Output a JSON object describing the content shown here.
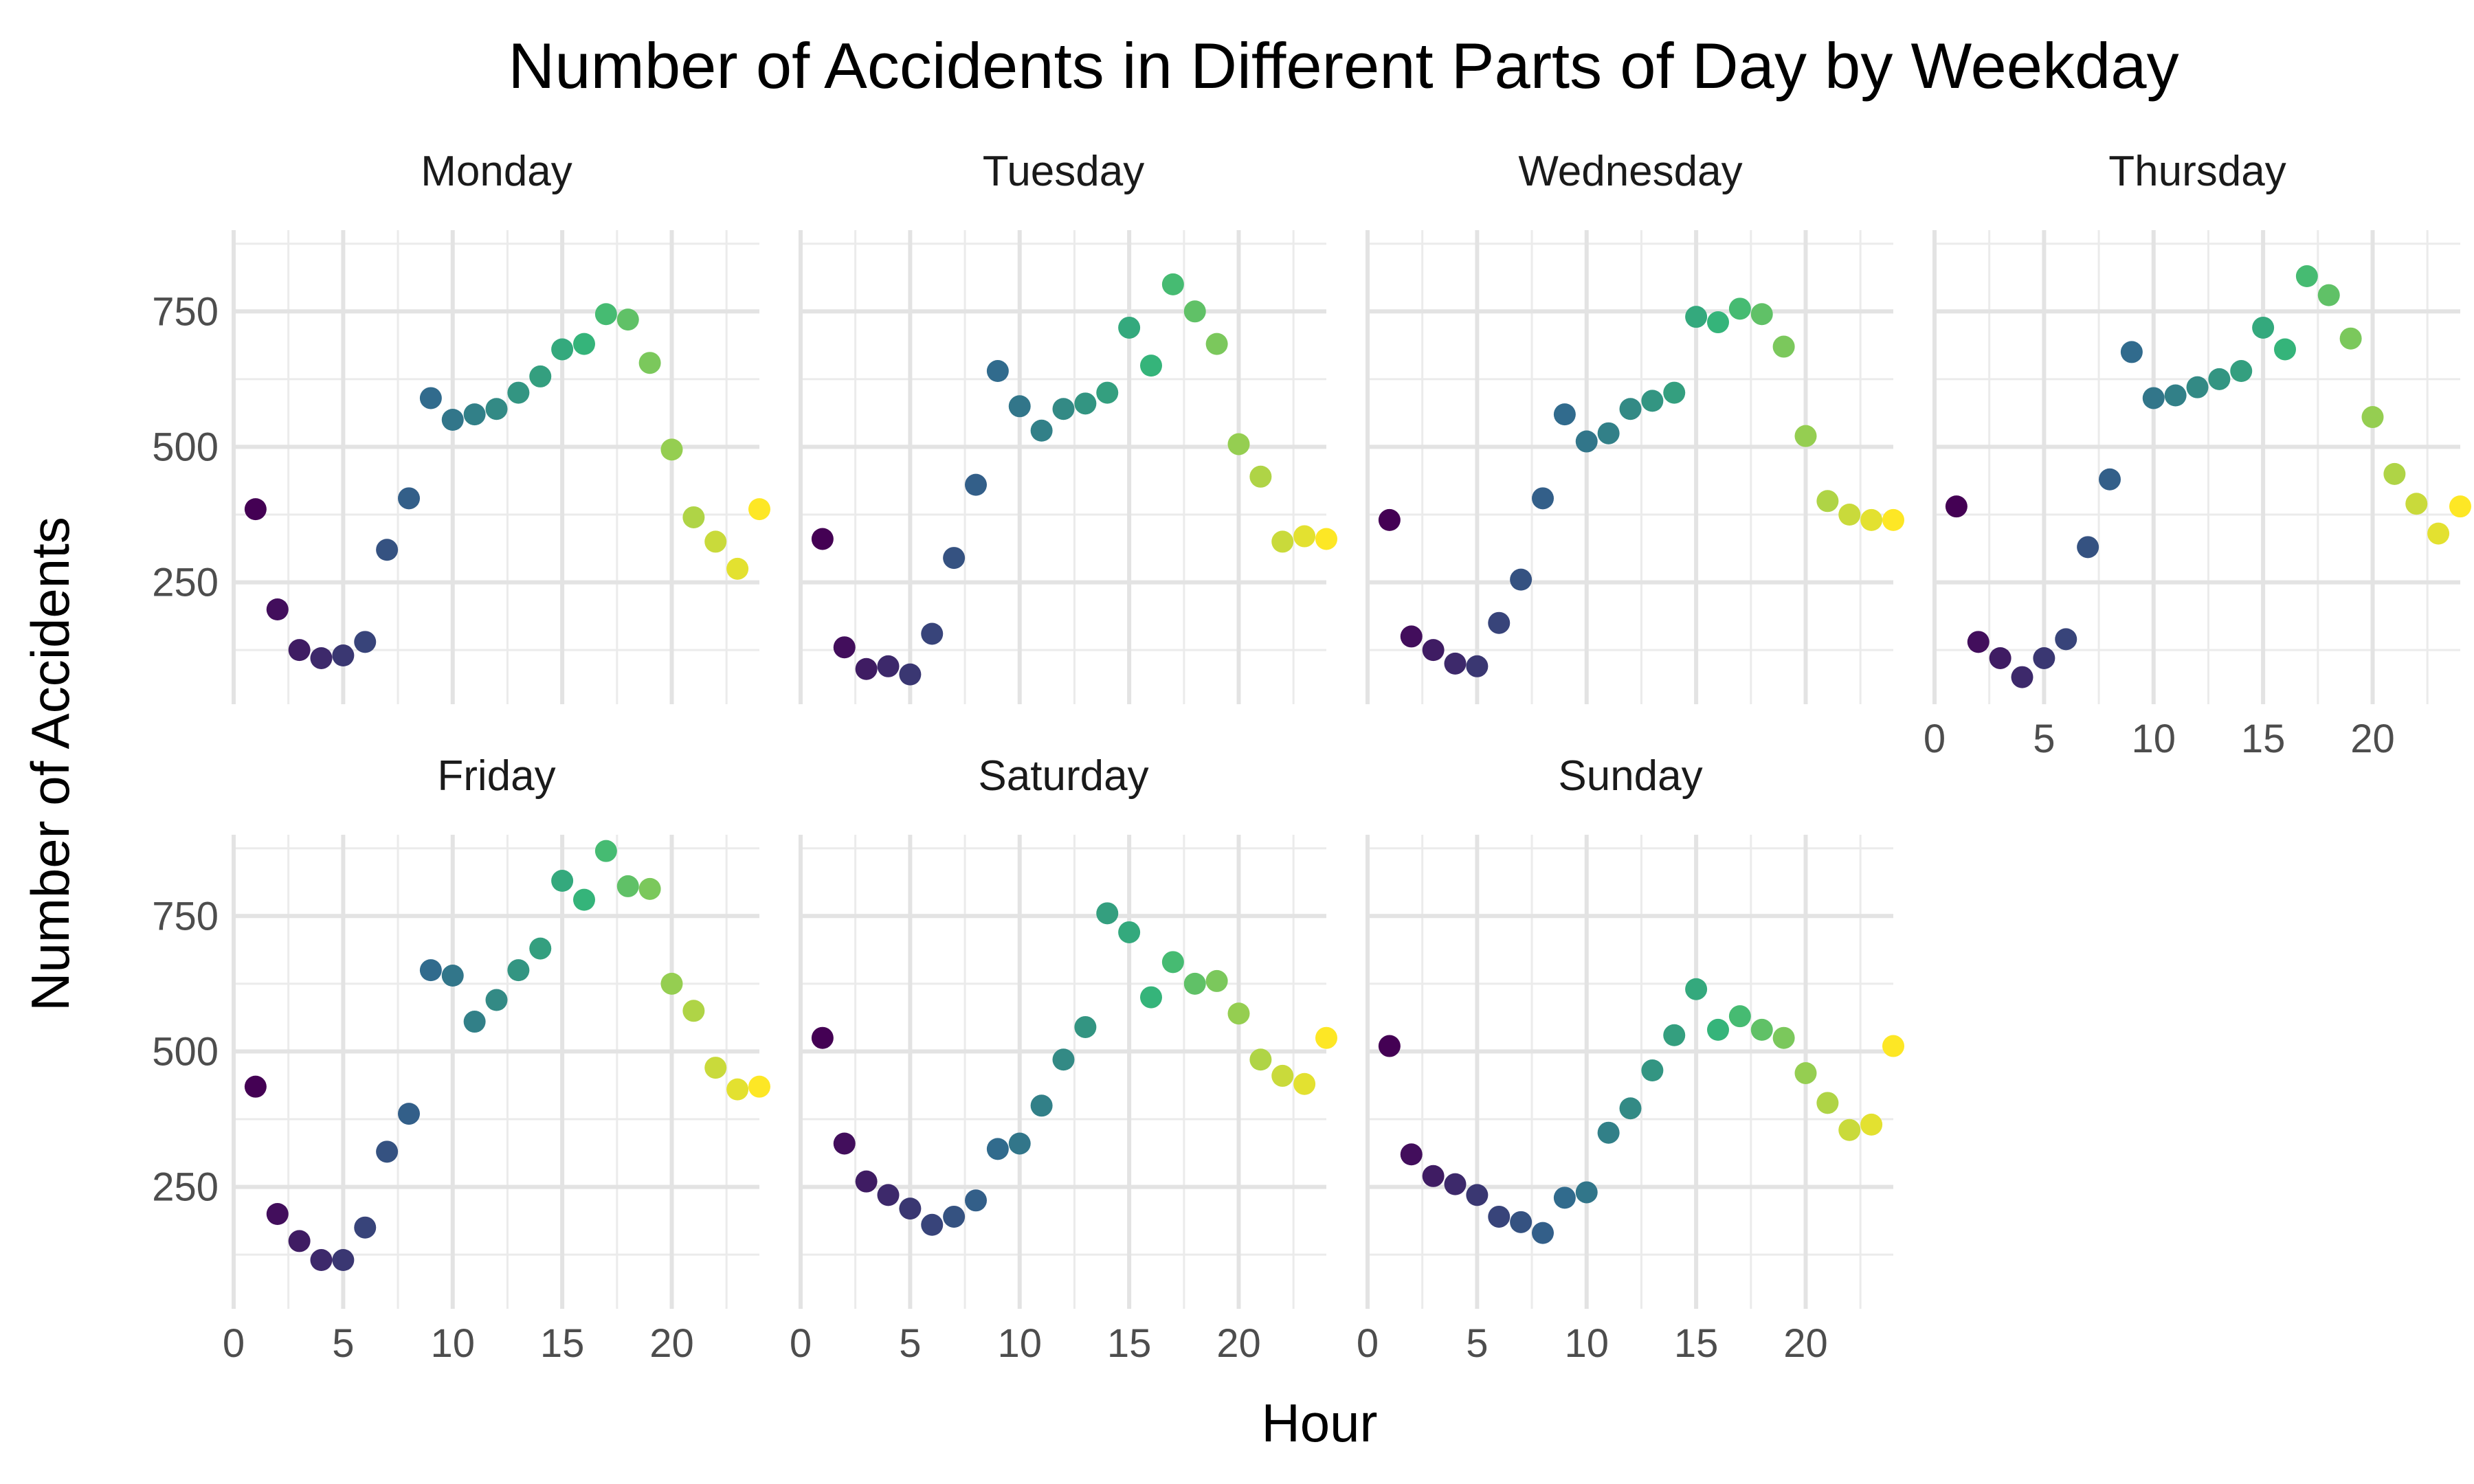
{
  "chart_data": {
    "type": "scatter",
    "title": "Number of Accidents in Different Parts of Day by Weekday",
    "xlabel": "Hour",
    "ylabel": "Number of Accidents",
    "xlim": [
      0,
      24
    ],
    "ylim": [
      25,
      900
    ],
    "x_ticks": [
      0,
      5,
      10,
      15,
      20
    ],
    "y_ticks": [
      250,
      500,
      750
    ],
    "grid": true,
    "legend": "none",
    "color_scale": [
      "#440154",
      "#31688e",
      "#35b779",
      "#fde725"
    ],
    "hours": [
      1,
      2,
      3,
      4,
      5,
      6,
      7,
      8,
      9,
      10,
      11,
      12,
      13,
      14,
      15,
      16,
      17,
      18,
      19,
      20,
      21,
      22,
      23,
      24
    ],
    "panels": [
      {
        "name": "Monday",
        "values": [
          385,
          200,
          125,
          110,
          115,
          140,
          310,
          405,
          590,
          550,
          560,
          570,
          600,
          630,
          680,
          690,
          745,
          735,
          655,
          495,
          370,
          325,
          275,
          385
        ]
      },
      {
        "name": "Tuesday",
        "values": [
          330,
          130,
          90,
          95,
          80,
          155,
          295,
          430,
          640,
          575,
          530,
          570,
          580,
          600,
          720,
          650,
          800,
          750,
          690,
          505,
          445,
          325,
          335,
          330
        ]
      },
      {
        "name": "Wednesday",
        "values": [
          365,
          150,
          125,
          100,
          95,
          175,
          255,
          405,
          560,
          510,
          525,
          570,
          585,
          600,
          740,
          730,
          755,
          745,
          685,
          520,
          400,
          375,
          365,
          365
        ]
      },
      {
        "name": "Thursday",
        "values": [
          390,
          140,
          110,
          75,
          110,
          145,
          315,
          440,
          675,
          590,
          595,
          610,
          625,
          640,
          720,
          680,
          815,
          780,
          700,
          555,
          450,
          395,
          340,
          390
        ]
      },
      {
        "name": "Friday",
        "values": [
          435,
          200,
          150,
          115,
          115,
          175,
          315,
          385,
          650,
          640,
          555,
          595,
          650,
          690,
          815,
          780,
          870,
          805,
          800,
          625,
          575,
          470,
          430,
          435
        ]
      },
      {
        "name": "Saturday",
        "values": [
          525,
          330,
          260,
          235,
          210,
          180,
          195,
          225,
          320,
          330,
          400,
          485,
          545,
          755,
          720,
          600,
          665,
          625,
          630,
          570,
          485,
          455,
          440,
          525
        ]
      },
      {
        "name": "Sunday",
        "values": [
          510,
          310,
          270,
          255,
          235,
          195,
          185,
          165,
          230,
          240,
          350,
          395,
          465,
          530,
          615,
          540,
          565,
          540,
          525,
          460,
          405,
          355,
          365,
          510
        ]
      }
    ]
  }
}
